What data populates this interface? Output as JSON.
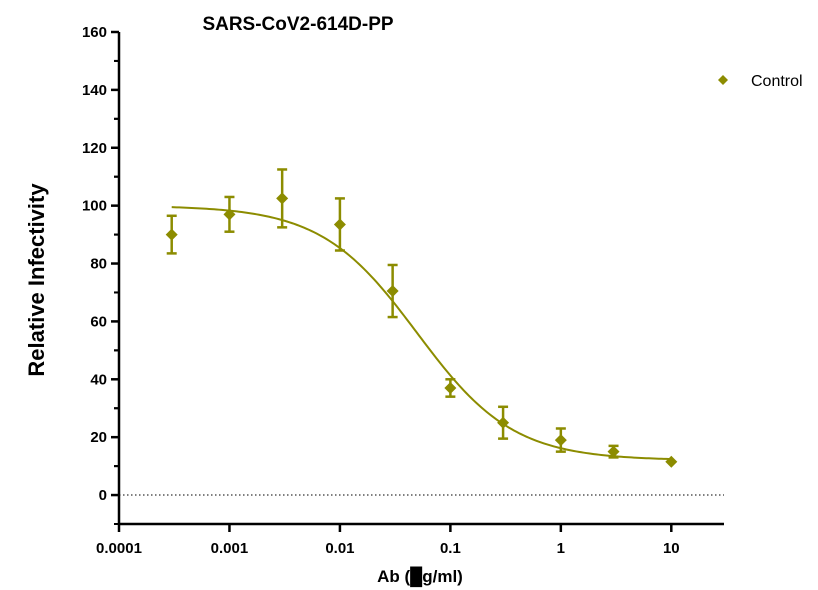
{
  "chart_data": {
    "type": "scatter",
    "title": "SARS-CoV2-614D-PP",
    "xlabel": "Ab (█g/ml)",
    "ylabel": "Relative Infectivity",
    "xscale": "log",
    "xlim": [
      0.0001,
      30
    ],
    "ylim": [
      -10,
      160
    ],
    "x_ticks": [
      "0.0001",
      "0.001",
      "0.01",
      "0.1",
      "1",
      "10"
    ],
    "y_ticks": [
      "0",
      "20",
      "40",
      "60",
      "80",
      "100",
      "120",
      "140",
      "160"
    ],
    "reference_line": {
      "y": 0,
      "style": "dotted"
    },
    "legend": {
      "position": "top-right"
    },
    "series": [
      {
        "name": "Control",
        "color": "#8c8c00",
        "marker": "diamond",
        "x": [
          0.0003,
          0.001,
          0.003,
          0.01,
          0.03,
          0.1,
          0.3,
          1,
          3,
          10
        ],
        "y": [
          90,
          97,
          102.5,
          93.5,
          70.5,
          37,
          25,
          19,
          15,
          11.5
        ],
        "err": [
          6.5,
          6,
          10,
          9,
          9,
          3,
          5.5,
          4,
          2,
          0
        ],
        "fit": {
          "top": 100,
          "bottom": 12,
          "ic50": 0.05,
          "hill": 1.0
        }
      }
    ]
  }
}
